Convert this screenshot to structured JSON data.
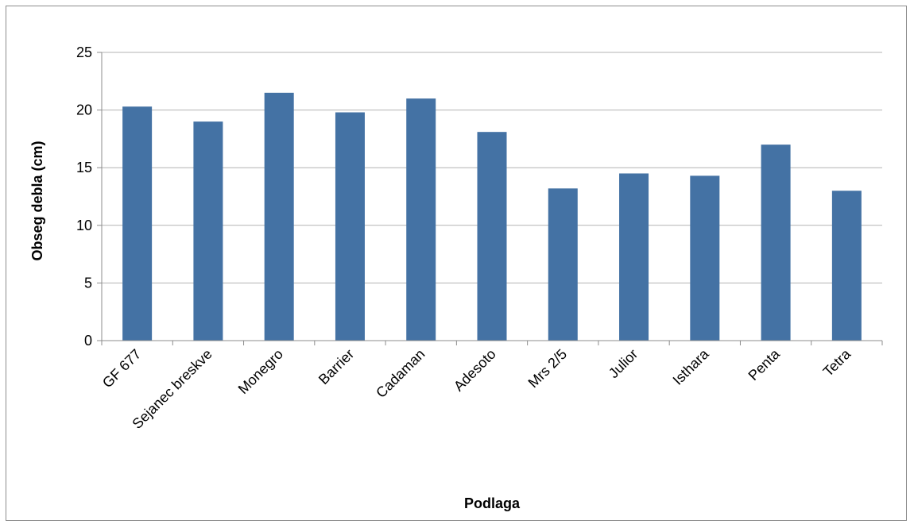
{
  "chart_data": {
    "type": "bar",
    "title": "",
    "xlabel": "Podlaga",
    "ylabel": "Obseg debla (cm)",
    "categories": [
      "GF 677",
      "Sejanec breskve",
      "Monegro",
      "Barrier",
      "Cadaman",
      "Adesoto",
      "Mrs 2/5",
      "Julior",
      "Isthara",
      "Penta",
      "Tetra"
    ],
    "values": [
      20.3,
      19.0,
      21.5,
      19.8,
      21.0,
      18.1,
      13.2,
      14.5,
      14.3,
      17.0,
      13.0
    ],
    "ylim": [
      0,
      25
    ],
    "yticks": [
      0,
      5,
      10,
      15,
      20,
      25
    ],
    "grid": true,
    "legend": "none",
    "bar_color": "#4472a4",
    "gridline_color": "#b3b3b3"
  }
}
